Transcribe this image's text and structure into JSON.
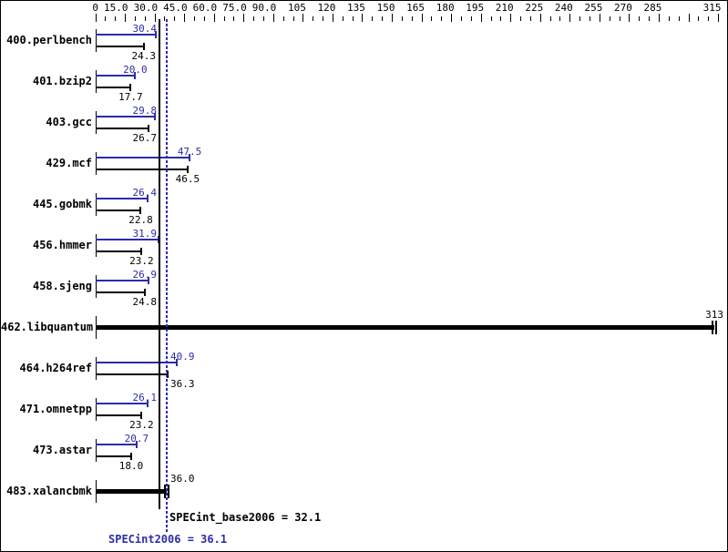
{
  "chart_data": {
    "type": "bar",
    "orientation": "horizontal",
    "axis": {
      "min": 0,
      "max": 315,
      "minor_step": 5,
      "major_step": 15,
      "position": "top",
      "labels": [
        {
          "value": 0,
          "text": "0"
        },
        {
          "value": 15,
          "text": "15.0"
        },
        {
          "value": 30,
          "text": "30.0"
        },
        {
          "value": 45,
          "text": "45.0"
        },
        {
          "value": 60,
          "text": "60.0"
        },
        {
          "value": 75,
          "text": "75.0"
        },
        {
          "value": 90,
          "text": "90.0"
        },
        {
          "value": 105,
          "text": "105"
        },
        {
          "value": 120,
          "text": "120"
        },
        {
          "value": 135,
          "text": "135"
        },
        {
          "value": 150,
          "text": "150"
        },
        {
          "value": 165,
          "text": "165"
        },
        {
          "value": 180,
          "text": "180"
        },
        {
          "value": 195,
          "text": "195"
        },
        {
          "value": 210,
          "text": "210"
        },
        {
          "value": 225,
          "text": "225"
        },
        {
          "value": 240,
          "text": "240"
        },
        {
          "value": 255,
          "text": "255"
        },
        {
          "value": 270,
          "text": "270"
        },
        {
          "value": 285,
          "text": "285"
        },
        {
          "value": 315,
          "text": "315"
        }
      ]
    },
    "series": [
      {
        "name": "SPECint2006 (peak)",
        "color": "#2c2ca8"
      },
      {
        "name": "SPECint_base2006 (base)",
        "color": "#000000"
      }
    ],
    "rows": [
      {
        "benchmark": "400.perlbench",
        "peak": 30.4,
        "peak_label": "30.4",
        "base": 24.3,
        "base_label": "24.3"
      },
      {
        "benchmark": "401.bzip2",
        "peak": 20.0,
        "peak_label": "20.0",
        "base": 17.7,
        "base_label": "17.7"
      },
      {
        "benchmark": "403.gcc",
        "peak": 29.8,
        "peak_label": "29.8",
        "base": 26.7,
        "base_label": "26.7"
      },
      {
        "benchmark": "429.mcf",
        "peak": 47.5,
        "peak_label": "47.5",
        "base": 46.5,
        "base_label": "46.5"
      },
      {
        "benchmark": "445.gobmk",
        "peak": 26.4,
        "peak_label": "26.4",
        "base": 22.8,
        "base_label": "22.8"
      },
      {
        "benchmark": "456.hmmer",
        "peak": 31.9,
        "peak_label": "31.9",
        "base": 23.2,
        "base_label": "23.2"
      },
      {
        "benchmark": "458.sjeng",
        "peak": 26.9,
        "peak_label": "26.9",
        "base": 24.8,
        "base_label": "24.8"
      },
      {
        "benchmark": "462.libquantum",
        "merged": 313,
        "merged_label": "313"
      },
      {
        "benchmark": "464.h264ref",
        "peak": 40.9,
        "peak_label": "40.9",
        "base": 36.3,
        "base_label": "36.3"
      },
      {
        "benchmark": "471.omnetpp",
        "peak": 26.1,
        "peak_label": "26.1",
        "base": 23.2,
        "base_label": "23.2"
      },
      {
        "benchmark": "473.astar",
        "peak": 20.7,
        "peak_label": "20.7",
        "base": 18.0,
        "base_label": "18.0"
      },
      {
        "benchmark": "483.xalancbmk",
        "merged": 36.0,
        "merged_label": "36.0"
      }
    ],
    "reference_lines": {
      "base": {
        "label": "SPECint_base2006 = 32.1",
        "value": 32.1,
        "style": "solid",
        "color": "#000000"
      },
      "peak": {
        "label": "SPECint2006 = 36.1",
        "value": 36.1,
        "style": "dotted",
        "color": "#2c2ca8"
      }
    }
  },
  "colors": {
    "peak_blue": "#2c2ca8",
    "black": "#000000",
    "background": "#ffffff"
  }
}
